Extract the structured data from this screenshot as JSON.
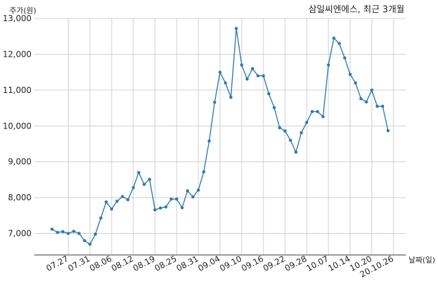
{
  "chart_data": {
    "type": "line",
    "title": "삼일씨엔에스, 최근 3개월",
    "xlabel": "날짜(일)",
    "ylabel": "주가(원)",
    "ylim": [
      6400,
      13000
    ],
    "yticks": [
      7000,
      8000,
      9000,
      10000,
      11000,
      12000,
      13000
    ],
    "ytick_labels": [
      "7,000",
      "8,000",
      "9,000",
      "10,000",
      "11,000",
      "12,000",
      "13,000"
    ],
    "xtick_labels": [
      "07.27",
      "07.31",
      "08.06",
      "08.12",
      "08.19",
      "08.25",
      "08.31",
      "09.04",
      "09.10",
      "09.16",
      "09.22",
      "09.28",
      "10.07",
      "10.14",
      "10.20",
      "20.10.26"
    ],
    "xtick_positions": [
      3,
      7,
      11,
      15,
      19,
      23,
      27,
      31,
      35,
      39,
      43,
      47,
      51,
      55,
      59,
      63
    ],
    "grid": true,
    "line_color": "#2e79b0",
    "series": [
      {
        "values": [
          7120,
          7030,
          7050,
          7000,
          7060,
          7000,
          6800,
          6700,
          6980,
          7430,
          7880,
          7680,
          7900,
          8030,
          7940,
          8280,
          8700,
          8370,
          8510,
          7660,
          7710,
          7740,
          7960,
          7960,
          7720,
          8190,
          8020,
          8210,
          8720,
          9580,
          10660,
          11500,
          11200,
          10800,
          12720,
          11700,
          11310,
          11600,
          11400,
          11400,
          10900,
          10510,
          9950,
          9860,
          9600,
          9270,
          9810,
          10100,
          10400,
          10400,
          10260,
          11700,
          12450,
          12300,
          11900,
          11440,
          11200,
          10760,
          10670,
          11000,
          10550,
          10550,
          9870
        ]
      }
    ]
  }
}
